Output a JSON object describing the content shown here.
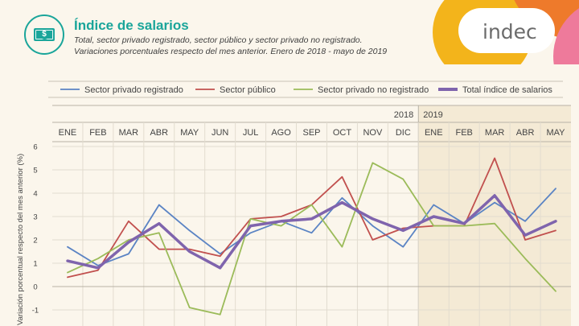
{
  "header": {
    "title": "Índice de salarios",
    "subtitle_line1": "Total, sector privado registrado, sector público y sector privado no registrado.",
    "subtitle_line2": "Variaciones porcentuales respecto del mes anterior. Enero de 2018 - mayo de 2019",
    "icon": "money-bill-icon",
    "icon_symbol": "$"
  },
  "brand": {
    "logo_text": "indec",
    "colors": {
      "yellow": "#f3b41b",
      "orange": "#ee7a2b",
      "pink": "#ee7a9b",
      "teal": "#1aa59a"
    }
  },
  "chart_data": {
    "type": "line",
    "years": [
      {
        "label": "2018",
        "months": 12
      },
      {
        "label": "2019",
        "months": 5
      }
    ],
    "categories": [
      "ENE",
      "FEB",
      "MAR",
      "ABR",
      "MAY",
      "JUN",
      "JUL",
      "AGO",
      "SEP",
      "OCT",
      "NOV",
      "DIC",
      "ENE",
      "FEB",
      "MAR",
      "ABR",
      "MAY"
    ],
    "ylabel": "Variación porcentual respecto del mes anterior (%)",
    "ylim": [
      -1,
      6
    ],
    "yticks": [
      -1,
      0,
      1,
      2,
      3,
      4,
      5,
      6
    ],
    "grid": true,
    "legend_position": "top",
    "series": [
      {
        "name": "Sector privado registrado",
        "color": "#5b84c4",
        "values": [
          1.7,
          0.9,
          1.4,
          3.5,
          2.4,
          1.4,
          2.3,
          2.8,
          2.3,
          3.8,
          2.6,
          1.7,
          3.5,
          2.7,
          3.6,
          2.8,
          4.2
        ]
      },
      {
        "name": "Sector público",
        "color": "#c1504e",
        "values": [
          0.4,
          0.7,
          2.8,
          1.6,
          1.6,
          1.3,
          2.9,
          3.0,
          3.5,
          4.7,
          2.0,
          2.5,
          2.6,
          2.6,
          5.5,
          2.0,
          2.4
        ]
      },
      {
        "name": "Sector privado no registrado",
        "color": "#9bbb59",
        "values": [
          0.6,
          1.2,
          2.0,
          2.3,
          -0.9,
          -1.2,
          2.9,
          2.6,
          3.5,
          1.7,
          5.3,
          4.6,
          2.6,
          2.6,
          2.7,
          1.2,
          -0.2
        ]
      },
      {
        "name": "Total índice de salarios",
        "color": "#7f64ad",
        "values": [
          1.1,
          0.8,
          1.9,
          2.7,
          1.5,
          0.8,
          2.6,
          2.8,
          2.9,
          3.6,
          2.9,
          2.4,
          3.0,
          2.7,
          3.9,
          2.2,
          2.8
        ]
      }
    ]
  }
}
